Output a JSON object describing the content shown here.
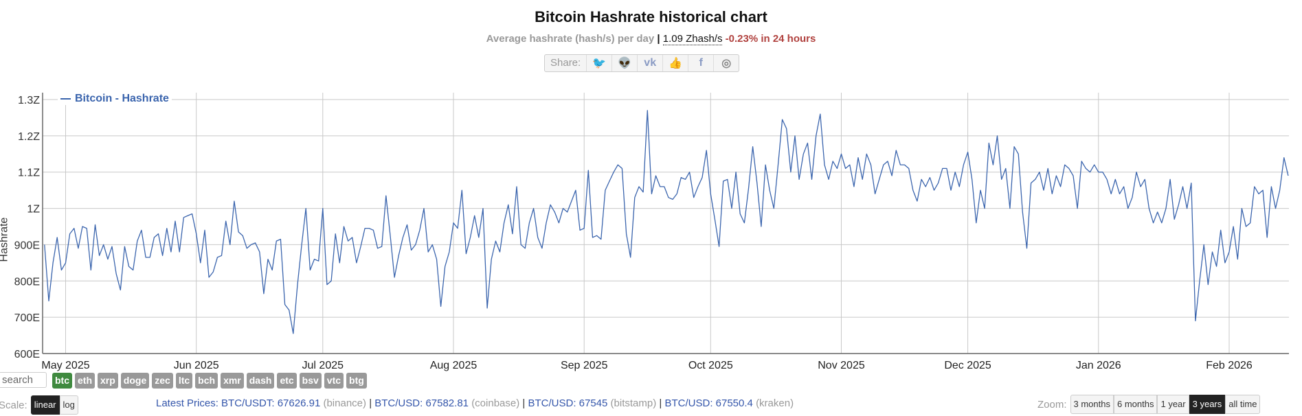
{
  "header": {
    "title": "Bitcoin Hashrate historical chart",
    "subtitle_label": "Average hashrate (hash/s) per day",
    "separator": "|",
    "current_value": "1.09 Zhash/s",
    "change": "-0.23% in 24 hours",
    "change_color": "#b0413e"
  },
  "share": {
    "label": "Share:",
    "icons": [
      "twitter-icon",
      "reddit-icon",
      "vk-icon",
      "like-icon",
      "facebook-icon",
      "weibo-icon"
    ],
    "glyphs": [
      "🐦",
      "👽",
      "vk",
      "👍",
      "f",
      "◎"
    ]
  },
  "chart_data": {
    "type": "line",
    "title": "Bitcoin Hashrate historical chart",
    "ylabel": "Hashrate",
    "yunit": "EH/s",
    "ylim": [
      600,
      1300
    ],
    "yticks": [
      {
        "value": 600,
        "label": "600E"
      },
      {
        "value": 700,
        "label": "700E"
      },
      {
        "value": 800,
        "label": "800E"
      },
      {
        "value": 900,
        "label": "900E"
      },
      {
        "value": 1000,
        "label": "1Z"
      },
      {
        "value": 1100,
        "label": "1.1Z"
      },
      {
        "value": 1200,
        "label": "1.2Z"
      },
      {
        "value": 1300,
        "label": "1.3Z"
      }
    ],
    "xticks": [
      {
        "date": "2025-05-01",
        "label": "May 2025"
      },
      {
        "date": "2025-06-01",
        "label": "Jun 2025"
      },
      {
        "date": "2025-07-01",
        "label": "Jul 2025"
      },
      {
        "date": "2025-08-01",
        "label": "Aug 2025"
      },
      {
        "date": "2025-09-01",
        "label": "Sep 2025"
      },
      {
        "date": "2025-10-01",
        "label": "Oct 2025"
      },
      {
        "date": "2025-11-01",
        "label": "Nov 2025"
      },
      {
        "date": "2025-12-01",
        "label": "Dec 2025"
      },
      {
        "date": "2026-01-01",
        "label": "Jan 2026"
      },
      {
        "date": "2026-02-01",
        "label": "Feb 2026"
      }
    ],
    "grid": true,
    "legend_position": "top-left",
    "series": [
      {
        "name": "Bitcoin - Hashrate",
        "color": "#3a64ad",
        "daily_values_by_month": [
          {
            "month": "2025-04",
            "start_day": 26,
            "values": [
              900,
              745,
              850,
              920,
              830
            ]
          },
          {
            "month": "2025-05",
            "start_day": 1,
            "values": [
              850,
              930,
              945,
              890,
              950,
              945,
              830,
              955,
              870,
              900,
              860,
              895,
              820,
              775,
              895,
              840,
              830,
              910,
              940,
              865,
              865,
              920,
              930,
              870,
              945,
              880,
              965,
              880,
              975,
              980,
              985
            ]
          },
          {
            "month": "2025-06",
            "start_day": 1,
            "values": [
              930,
              850,
              940,
              810,
              825,
              865,
              870,
              965,
              900,
              1020,
              935,
              925,
              890,
              900,
              905,
              880,
              765,
              860,
              830,
              910,
              915,
              735,
              720,
              655,
              790,
              900,
              1000,
              830,
              860,
              855
            ]
          },
          {
            "month": "2025-07",
            "start_day": 1,
            "values": [
              1000,
              790,
              800,
              930,
              850,
              950,
              910,
              920,
              850,
              895,
              945,
              945,
              940,
              890,
              895,
              1035,
              925,
              810,
              870,
              920,
              955,
              885,
              900,
              940,
              1000,
              880,
              900,
              860,
              730,
              840,
              880
            ]
          },
          {
            "month": "2025-08",
            "start_day": 1,
            "values": [
              960,
              945,
              1050,
              875,
              920,
              980,
              920,
              1000,
              725,
              860,
              910,
              880,
              960,
              1010,
              930,
              1060,
              900,
              890,
              960,
              1000,
              920,
              890,
              960,
              1010,
              990,
              960,
              1000,
              990,
              1020,
              1050,
              940
            ]
          },
          {
            "month": "2025-09",
            "start_day": 1,
            "values": [
              945,
              1105,
              920,
              925,
              915,
              1050,
              1075,
              1100,
              1120,
              1110,
              930,
              865,
              1030,
              1060,
              1045,
              1270,
              1040,
              1090,
              1060,
              1060,
              1030,
              1025,
              1040,
              1085,
              1080,
              1100,
              1030,
              1060,
              1085,
              1160
            ]
          },
          {
            "month": "2025-10",
            "start_day": 1,
            "values": [
              1040,
              970,
              895,
              1075,
              1080,
              1000,
              1100,
              985,
              960,
              1055,
              1170,
              1070,
              950,
              1120,
              1050,
              1000,
              1120,
              1245,
              1220,
              1100,
              1200,
              1080,
              1150,
              1180,
              1080,
              1200,
              1260,
              1120,
              1080,
              1130,
              1110
            ]
          },
          {
            "month": "2025-11",
            "start_day": 1,
            "values": [
              1150,
              1110,
              1120,
              1060,
              1140,
              1080,
              1150,
              1120,
              1040,
              1080,
              1120,
              1130,
              1090,
              1160,
              1120,
              1120,
              1110,
              1050,
              1020,
              1080,
              1060,
              1085,
              1050,
              1070,
              1110,
              1110,
              1050,
              1100,
              1060,
              1120
            ]
          },
          {
            "month": "2025-12",
            "start_day": 1,
            "values": [
              1155,
              1080,
              960,
              1050,
              1000,
              1180,
              1120,
              1200,
              1080,
              1110,
              1000,
              1170,
              1150,
              990,
              890,
              1070,
              1080,
              1100,
              1050,
              1110,
              1040,
              1090,
              1060,
              1120,
              1110,
              1090,
              1000,
              1130,
              1110,
              1100,
              1120
            ]
          },
          {
            "month": "2026-01",
            "start_day": 1,
            "values": [
              1100,
              1100,
              1080,
              1040,
              1080,
              1040,
              1060,
              1000,
              1030,
              1100,
              1060,
              1080,
              1000,
              960,
              990,
              960,
              1000,
              1080,
              970,
              1010,
              1060,
              1000,
              1070,
              690,
              800,
              900,
              790,
              880,
              840,
              940,
              850
            ]
          },
          {
            "month": "2026-02",
            "start_day": 1,
            "values": [
              880,
              950,
              860,
              1000,
              950,
              960,
              1060,
              1040,
              1050,
              920,
              1060,
              1000,
              1050,
              1140,
              1090
            ]
          }
        ]
      }
    ]
  },
  "currency": {
    "search_placeholder": "search",
    "coins": [
      "btc",
      "eth",
      "xrp",
      "doge",
      "zec",
      "ltc",
      "bch",
      "xmr",
      "dash",
      "etc",
      "bsv",
      "vtc",
      "btg"
    ],
    "active": "btc",
    "active_color": "#3f8a3f"
  },
  "scale": {
    "label": "Scale:",
    "options": [
      "linear",
      "log"
    ],
    "active": "linear"
  },
  "prices": {
    "label": "Latest Prices:",
    "items": [
      {
        "pair": "BTC/USDT: 67626.91",
        "exchange": "(binance)"
      },
      {
        "pair": "BTC/USD: 67582.81",
        "exchange": "(coinbase)"
      },
      {
        "pair": "BTC/USD: 67545",
        "exchange": "(bitstamp)"
      },
      {
        "pair": "BTC/USD: 67550.4",
        "exchange": "(kraken)"
      }
    ]
  },
  "zoom": {
    "label": "Zoom:",
    "options": [
      "3 months",
      "6 months",
      "1 year",
      "3 years",
      "all time"
    ],
    "active": "3 years"
  }
}
